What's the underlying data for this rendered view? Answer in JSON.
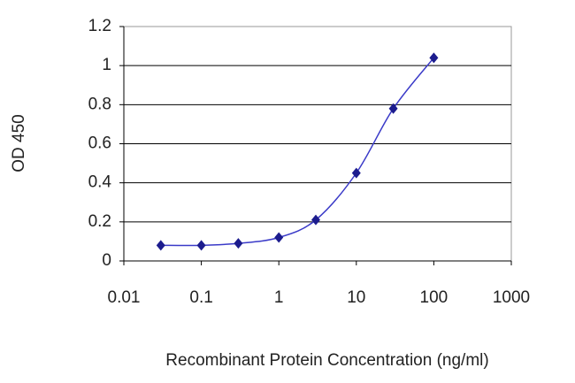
{
  "chart_data": {
    "type": "line",
    "x_label": "Recombinant Protein Concentration (ng/ml)",
    "y_label": "OD 450",
    "x": [
      0.03,
      0.1,
      0.3,
      1,
      3,
      10,
      30,
      100
    ],
    "series": [
      {
        "color": "#1c1c8e",
        "values": [
          0.08,
          0.08,
          0.09,
          0.12,
          0.21,
          0.45,
          0.78,
          1.04
        ]
      }
    ],
    "xscale": "log",
    "xlim": [
      0.01,
      1000
    ],
    "xticks": [
      0.01,
      0.1,
      1,
      10,
      100,
      1000
    ],
    "ylim": [
      0,
      1.2
    ],
    "yticks": [
      0,
      0.2,
      0.4,
      0.6,
      0.8,
      1,
      1.2
    ],
    "grid": true
  }
}
